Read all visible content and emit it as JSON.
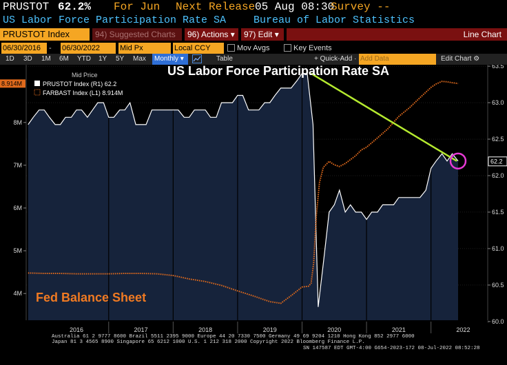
{
  "header": {
    "ticker": "PRUSTOT",
    "value": "62.2%",
    "period": "For Jun",
    "next_release": "Next Release",
    "release_date": "05 Aug 08:30",
    "survey": "Survey --",
    "name": "US Labor Force Participation Rate SA",
    "source": "Bureau of Labor Statistics"
  },
  "toolbar": {
    "security": "PRUSTOT Index",
    "suggested": "94) Suggested Charts",
    "actions": "96) Actions ▾",
    "edit": "97) Edit ▾",
    "mode": "Line Chart"
  },
  "options": {
    "start_date": "06/30/2016",
    "end_date": "06/30/2022",
    "price_field": "Mid Px",
    "currency": "Local CCY",
    "mov_avgs": "Mov Avgs",
    "key_events": "Key Events"
  },
  "tabs": {
    "periods": [
      "1D",
      "3D",
      "1M",
      "6M",
      "YTD",
      "1Y",
      "5Y",
      "Max"
    ],
    "frequency": "Monthly ▾",
    "table": "Table",
    "quick_add": "+ Quick-Add ·",
    "add_data": "Add Data",
    "edit_chart": "Edit Chart ⚙"
  },
  "colors": {
    "accent": "#f5a623",
    "price": "#ffffff",
    "fed": "#e06a1c",
    "trend": "#b5ea2f",
    "circle": "#e83ad6",
    "area": "#16233b"
  },
  "chart_data": {
    "type": "line",
    "title": "US Labor Force Participation Rate SA",
    "legend_title": "Mid Price",
    "legend": [
      {
        "label": "PRUSTOT Index  (R1) 62.2",
        "color": "#ffffff"
      },
      {
        "label": "FARBAST Index  (L1)  8.914M",
        "color": "#e06a1c"
      }
    ],
    "annotation": "Fed Balance Sheet",
    "x_ticks": [
      "2016",
      "2017",
      "2018",
      "2019",
      "2020",
      "2021",
      "2022"
    ],
    "right_axis": {
      "ticks": [
        "63.5",
        "63.0",
        "62.5",
        "62.0",
        "61.5",
        "61.0",
        "60.5",
        "60.0"
      ],
      "range": [
        59.98,
        63.52
      ],
      "last_label": "62.2"
    },
    "left_axis": {
      "ticks": [
        "8M",
        "7M",
        "6M",
        "5M",
        "4M"
      ],
      "range": [
        3.31,
        9.35
      ],
      "last_label": "8.914M"
    },
    "trend_line": {
      "from": {
        "t": 2020.14,
        "v": 63.4
      },
      "to": {
        "t": 2022.4,
        "v": 62.2
      }
    },
    "highlight_point": {
      "t": 2022.42,
      "v": 62.2
    },
    "series": [
      {
        "name": "PRUSTOT Index",
        "axis": "right",
        "t": [
          2015.75,
          2015.83,
          2015.92,
          2016.0,
          2016.08,
          2016.17,
          2016.25,
          2016.33,
          2016.42,
          2016.5,
          2016.58,
          2016.67,
          2016.75,
          2016.83,
          2016.92,
          2017.0,
          2017.08,
          2017.17,
          2017.25,
          2017.33,
          2017.42,
          2017.5,
          2017.58,
          2017.67,
          2017.75,
          2017.83,
          2017.92,
          2018.0,
          2018.08,
          2018.17,
          2018.25,
          2018.33,
          2018.42,
          2018.5,
          2018.58,
          2018.67,
          2018.75,
          2018.83,
          2018.92,
          2019.0,
          2019.08,
          2019.17,
          2019.25,
          2019.33,
          2019.42,
          2019.5,
          2019.58,
          2019.67,
          2019.75,
          2019.83,
          2019.92,
          2020.0,
          2020.08,
          2020.17,
          2020.25,
          2020.33,
          2020.42,
          2020.5,
          2020.58,
          2020.67,
          2020.75,
          2020.83,
          2020.92,
          2021.0,
          2021.08,
          2021.17,
          2021.25,
          2021.33,
          2021.42,
          2021.5,
          2021.58,
          2021.67,
          2021.75,
          2021.83,
          2021.92,
          2022.0,
          2022.08,
          2022.17,
          2022.25,
          2022.33,
          2022.42
        ],
        "values": [
          62.7,
          62.8,
          62.9,
          62.9,
          62.8,
          62.7,
          62.7,
          62.8,
          62.8,
          62.9,
          62.9,
          62.8,
          62.9,
          63.0,
          63.0,
          62.8,
          62.8,
          62.9,
          62.9,
          63.0,
          62.7,
          62.7,
          62.7,
          62.9,
          62.9,
          62.9,
          62.9,
          62.9,
          62.9,
          62.8,
          62.8,
          62.9,
          62.9,
          62.9,
          62.8,
          62.8,
          63.0,
          63.0,
          63.0,
          63.1,
          63.1,
          62.9,
          62.9,
          62.9,
          63.0,
          63.0,
          63.1,
          63.2,
          63.2,
          63.2,
          63.3,
          63.4,
          63.4,
          62.7,
          60.2,
          60.8,
          61.5,
          61.6,
          61.8,
          61.5,
          61.6,
          61.5,
          61.5,
          61.4,
          61.5,
          61.5,
          61.6,
          61.6,
          61.6,
          61.7,
          61.7,
          61.7,
          61.7,
          61.7,
          61.8,
          62.1,
          62.2,
          62.3,
          62.2,
          62.3,
          62.2
        ]
      },
      {
        "name": "FARBAST Index",
        "axis": "left",
        "t": [
          2015.75,
          2016.0,
          2016.25,
          2016.5,
          2016.75,
          2017.0,
          2017.25,
          2017.5,
          2017.75,
          2018.0,
          2018.25,
          2018.5,
          2018.75,
          2019.0,
          2019.25,
          2019.5,
          2019.67,
          2019.83,
          2020.0,
          2020.1,
          2020.14,
          2020.18,
          2020.22,
          2020.27,
          2020.33,
          2020.42,
          2020.5,
          2020.58,
          2020.67,
          2020.75,
          2020.83,
          2020.92,
          2021.0,
          2021.17,
          2021.33,
          2021.5,
          2021.67,
          2021.83,
          2022.0,
          2022.08,
          2022.17,
          2022.25,
          2022.33,
          2022.42
        ],
        "values": [
          4.48,
          4.47,
          4.47,
          4.46,
          4.46,
          4.46,
          4.47,
          4.47,
          4.46,
          4.42,
          4.34,
          4.28,
          4.19,
          4.06,
          3.94,
          3.81,
          3.77,
          3.95,
          4.15,
          4.17,
          4.24,
          4.7,
          5.8,
          6.6,
          6.95,
          7.09,
          7.01,
          6.97,
          7.04,
          7.13,
          7.22,
          7.36,
          7.42,
          7.64,
          7.85,
          8.14,
          8.35,
          8.58,
          8.82,
          8.9,
          8.96,
          8.95,
          8.93,
          8.91
        ]
      }
    ]
  },
  "footer": {
    "line1": "Australia 61 2 9777 8600  Brazil 5511 2395 9000  Europe 44 20 7330 7500  Germany 49 69 9204 1210  Hong Kong 852 2977 6000",
    "line2": "Japan 81 3 4565 8900       Singapore 65 6212 1000       U.S. 1 212 318 2000            Copyright 2022 Bloomberg Finance L.P.",
    "line3": "SN 147587 EDT  GMT-4:00 G654-2023-172 08-Jul-2022 08:52:28"
  }
}
